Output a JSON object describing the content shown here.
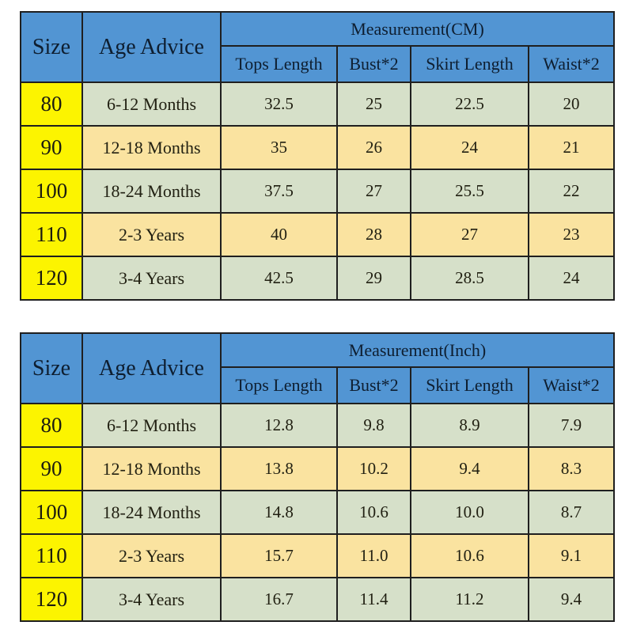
{
  "colors": {
    "header_blue": "#5295d3",
    "size_yellow": "#fcf400",
    "row_green": "#d6e0c9",
    "row_tan": "#fae3a0",
    "border": "#1f1f1f",
    "background": "#ffffff"
  },
  "tables": [
    {
      "size_header": "Size",
      "age_header": "Age Advice",
      "measurement_label": "Measurement(CM)",
      "sub_headers": [
        "Tops Length",
        "Bust*2",
        "Skirt Length",
        "Waist*2"
      ],
      "rows": [
        {
          "size": "80",
          "age": "6-12 Months",
          "values": [
            "32.5",
            "25",
            "22.5",
            "20"
          ]
        },
        {
          "size": "90",
          "age": "12-18 Months",
          "values": [
            "35",
            "26",
            "24",
            "21"
          ]
        },
        {
          "size": "100",
          "age": "18-24 Months",
          "values": [
            "37.5",
            "27",
            "25.5",
            "22"
          ]
        },
        {
          "size": "110",
          "age": "2-3 Years",
          "values": [
            "40",
            "28",
            "27",
            "23"
          ]
        },
        {
          "size": "120",
          "age": "3-4 Years",
          "values": [
            "42.5",
            "29",
            "28.5",
            "24"
          ]
        }
      ]
    },
    {
      "size_header": "Size",
      "age_header": "Age Advice",
      "measurement_label": "Measurement(Inch)",
      "sub_headers": [
        "Tops Length",
        "Bust*2",
        "Skirt Length",
        "Waist*2"
      ],
      "rows": [
        {
          "size": "80",
          "age": "6-12 Months",
          "values": [
            "12.8",
            "9.8",
            "8.9",
            "7.9"
          ]
        },
        {
          "size": "90",
          "age": "12-18 Months",
          "values": [
            "13.8",
            "10.2",
            "9.4",
            "8.3"
          ]
        },
        {
          "size": "100",
          "age": "18-24 Months",
          "values": [
            "14.8",
            "10.6",
            "10.0",
            "8.7"
          ]
        },
        {
          "size": "110",
          "age": "2-3 Years",
          "values": [
            "15.7",
            "11.0",
            "10.6",
            "9.1"
          ]
        },
        {
          "size": "120",
          "age": "3-4 Years",
          "values": [
            "16.7",
            "11.4",
            "11.2",
            "9.4"
          ]
        }
      ]
    }
  ],
  "chart_data": [
    {
      "type": "table",
      "title": "Measurement(CM)",
      "columns": [
        "Size",
        "Age Advice",
        "Tops Length",
        "Bust*2",
        "Skirt Length",
        "Waist*2"
      ],
      "rows": [
        [
          "80",
          "6-12 Months",
          32.5,
          25,
          22.5,
          20
        ],
        [
          "90",
          "12-18 Months",
          35,
          26,
          24,
          21
        ],
        [
          "100",
          "18-24 Months",
          37.5,
          27,
          25.5,
          22
        ],
        [
          "110",
          "2-3 Years",
          40,
          28,
          27,
          23
        ],
        [
          "120",
          "3-4 Years",
          42.5,
          29,
          28.5,
          24
        ]
      ]
    },
    {
      "type": "table",
      "title": "Measurement(Inch)",
      "columns": [
        "Size",
        "Age Advice",
        "Tops Length",
        "Bust*2",
        "Skirt Length",
        "Waist*2"
      ],
      "rows": [
        [
          "80",
          "6-12 Months",
          12.8,
          9.8,
          8.9,
          7.9
        ],
        [
          "90",
          "12-18 Months",
          13.8,
          10.2,
          9.4,
          8.3
        ],
        [
          "100",
          "18-24 Months",
          14.8,
          10.6,
          10.0,
          8.7
        ],
        [
          "110",
          "2-3 Years",
          15.7,
          11.0,
          10.6,
          9.1
        ],
        [
          "120",
          "3-4 Years",
          16.7,
          11.4,
          11.2,
          9.4
        ]
      ]
    }
  ]
}
